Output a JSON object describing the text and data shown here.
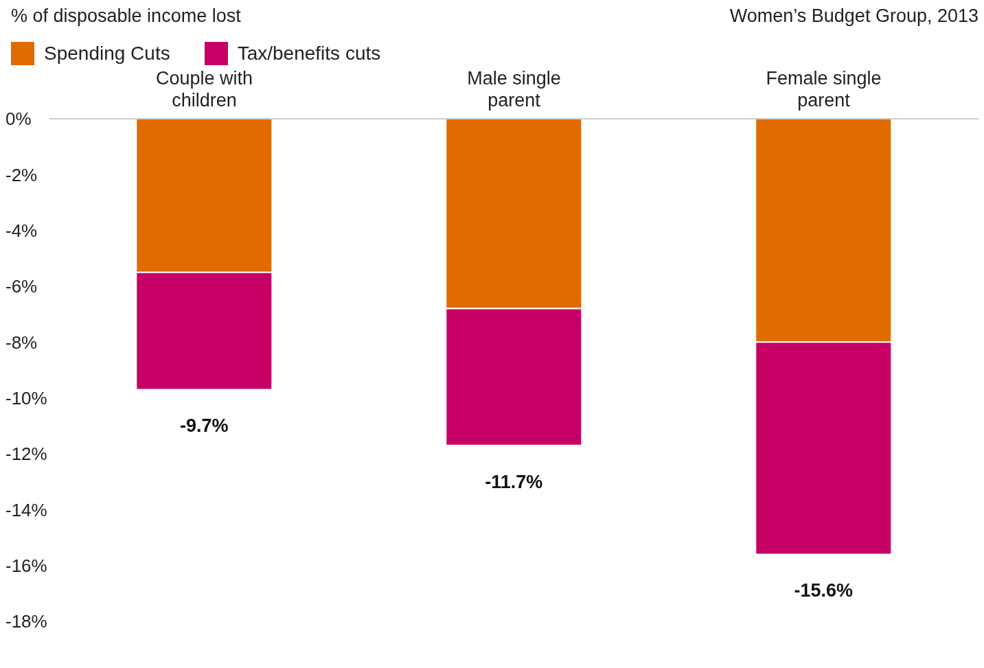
{
  "chart_data": {
    "type": "bar",
    "title": "% of disposable income lost",
    "annotations": [
      "Women’s Budget Group, 2013"
    ],
    "categories": [
      "Couple with children",
      "Male single parent",
      "Female single parent"
    ],
    "stacked": true,
    "series": [
      {
        "name": "Spending Cuts",
        "color": "#e06c00",
        "values": [
          -5.5,
          -6.8,
          -8.0
        ]
      },
      {
        "name": "Tax/benefits cuts",
        "color": "#c70066",
        "values": [
          -4.2,
          -4.9,
          -7.6
        ]
      }
    ],
    "totals": [
      "-9.7%",
      "-11.7%",
      "-15.6%"
    ],
    "ylim": [
      -18,
      0
    ],
    "yticks": [
      {
        "value": 0,
        "label": "0%"
      },
      {
        "value": -2,
        "label": "-2%"
      },
      {
        "value": -4,
        "label": "-4%"
      },
      {
        "value": -6,
        "label": "-6%"
      },
      {
        "value": -8,
        "label": "-8%"
      },
      {
        "value": -10,
        "label": "-10%"
      },
      {
        "value": -12,
        "label": "-12%"
      },
      {
        "value": -14,
        "label": "-14%"
      },
      {
        "value": -16,
        "label": "-16%"
      },
      {
        "value": -18,
        "label": "-18%"
      }
    ],
    "grid": false,
    "legend": "top left"
  }
}
